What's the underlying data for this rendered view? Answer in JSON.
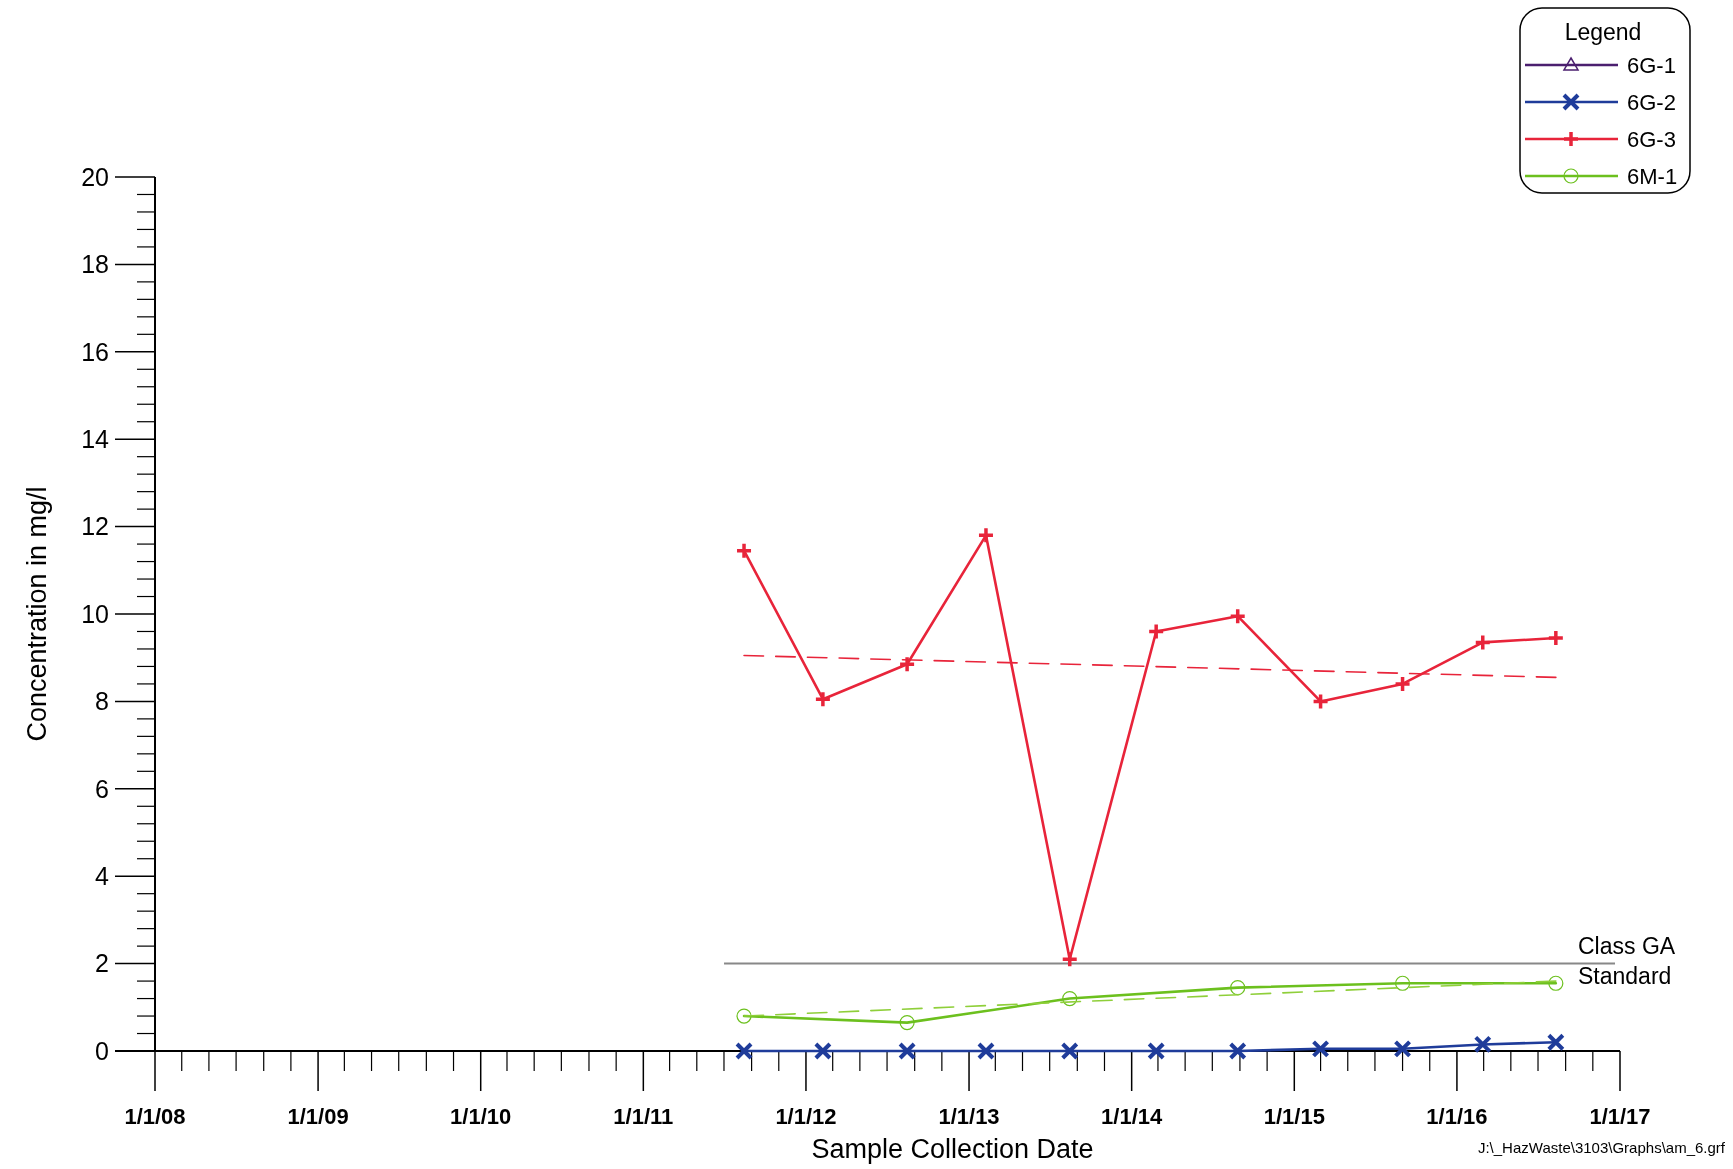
{
  "chart_data": {
    "type": "line",
    "xlabel": "Sample Collection Date",
    "ylabel": "Concentration in mg/l",
    "legend_title": "Legend",
    "legend": "top right",
    "xlim": [
      "2008-01-01",
      "2017-01-01"
    ],
    "xticks": [
      {
        "value": "2008-01-01",
        "label": "1/1/08"
      },
      {
        "value": "2009-01-01",
        "label": "1/1/09"
      },
      {
        "value": "2010-01-01",
        "label": "1/1/10"
      },
      {
        "value": "2011-01-01",
        "label": "1/1/11"
      },
      {
        "value": "2012-01-01",
        "label": "1/1/12"
      },
      {
        "value": "2013-01-01",
        "label": "1/1/13"
      },
      {
        "value": "2014-01-01",
        "label": "1/1/14"
      },
      {
        "value": "2015-01-01",
        "label": "1/1/15"
      },
      {
        "value": "2016-01-01",
        "label": "1/1/16"
      },
      {
        "value": "2017-01-01",
        "label": "1/1/17"
      }
    ],
    "ylim": [
      0,
      20
    ],
    "yticks": [
      0,
      2,
      4,
      6,
      8,
      10,
      12,
      14,
      16,
      18,
      20
    ],
    "ref_lines": [
      {
        "axis": "y",
        "value": 2,
        "label": "Class GA\nStandard",
        "color": "#888888"
      }
    ],
    "annotations": [
      "J:\\_HazWaste\\3103\\Graphs\\am_6.grf"
    ],
    "series": [
      {
        "name": "6G-1",
        "color": "#4b1f6f",
        "marker": "triangle"
      },
      {
        "name": "6G-2",
        "color": "#1f3c9a",
        "marker": "cross",
        "x": [
          "2011-08-15",
          "2012-02-08",
          "2012-08-15",
          "2013-02-08",
          "2013-08-15",
          "2014-02-25",
          "2014-08-27",
          "2015-03-01",
          "2015-09-01",
          "2016-02-28",
          "2016-08-10"
        ],
        "values": [
          0,
          0,
          0,
          0,
          0,
          0,
          0,
          0.05,
          0.05,
          0.15,
          0.2
        ]
      },
      {
        "name": "6G-3",
        "color": "#e8243a",
        "marker": "plus",
        "x": [
          "2011-08-15",
          "2012-02-08",
          "2012-08-15",
          "2013-02-08",
          "2013-08-15",
          "2014-02-25",
          "2014-08-27",
          "2015-03-01",
          "2015-09-01",
          "2016-02-28",
          "2016-08-10"
        ],
        "values": [
          11.45,
          8.05,
          8.85,
          11.8,
          2.1,
          9.6,
          9.95,
          8.0,
          8.4,
          9.35,
          9.45
        ]
      },
      {
        "name": "6M-1",
        "color": "#6cc01e",
        "marker": "circle",
        "x": [
          "2011-08-15",
          "2012-08-15",
          "2013-08-15",
          "2014-08-27",
          "2015-09-01",
          "2016-08-10"
        ],
        "values": [
          0.8,
          0.65,
          1.2,
          1.45,
          1.55,
          1.55
        ]
      },
      {
        "type": "line",
        "color": "#e8243a",
        "line_style": "dashed",
        "marker": "none",
        "x": [
          "2011-08-15",
          "2016-08-10"
        ],
        "values": [
          9.05,
          8.55
        ]
      },
      {
        "type": "line",
        "color": "#8fcf3a",
        "line_style": "dashed",
        "marker": "none",
        "x": [
          "2011-08-15",
          "2016-08-10"
        ],
        "values": [
          0.8,
          1.6
        ]
      }
    ]
  }
}
